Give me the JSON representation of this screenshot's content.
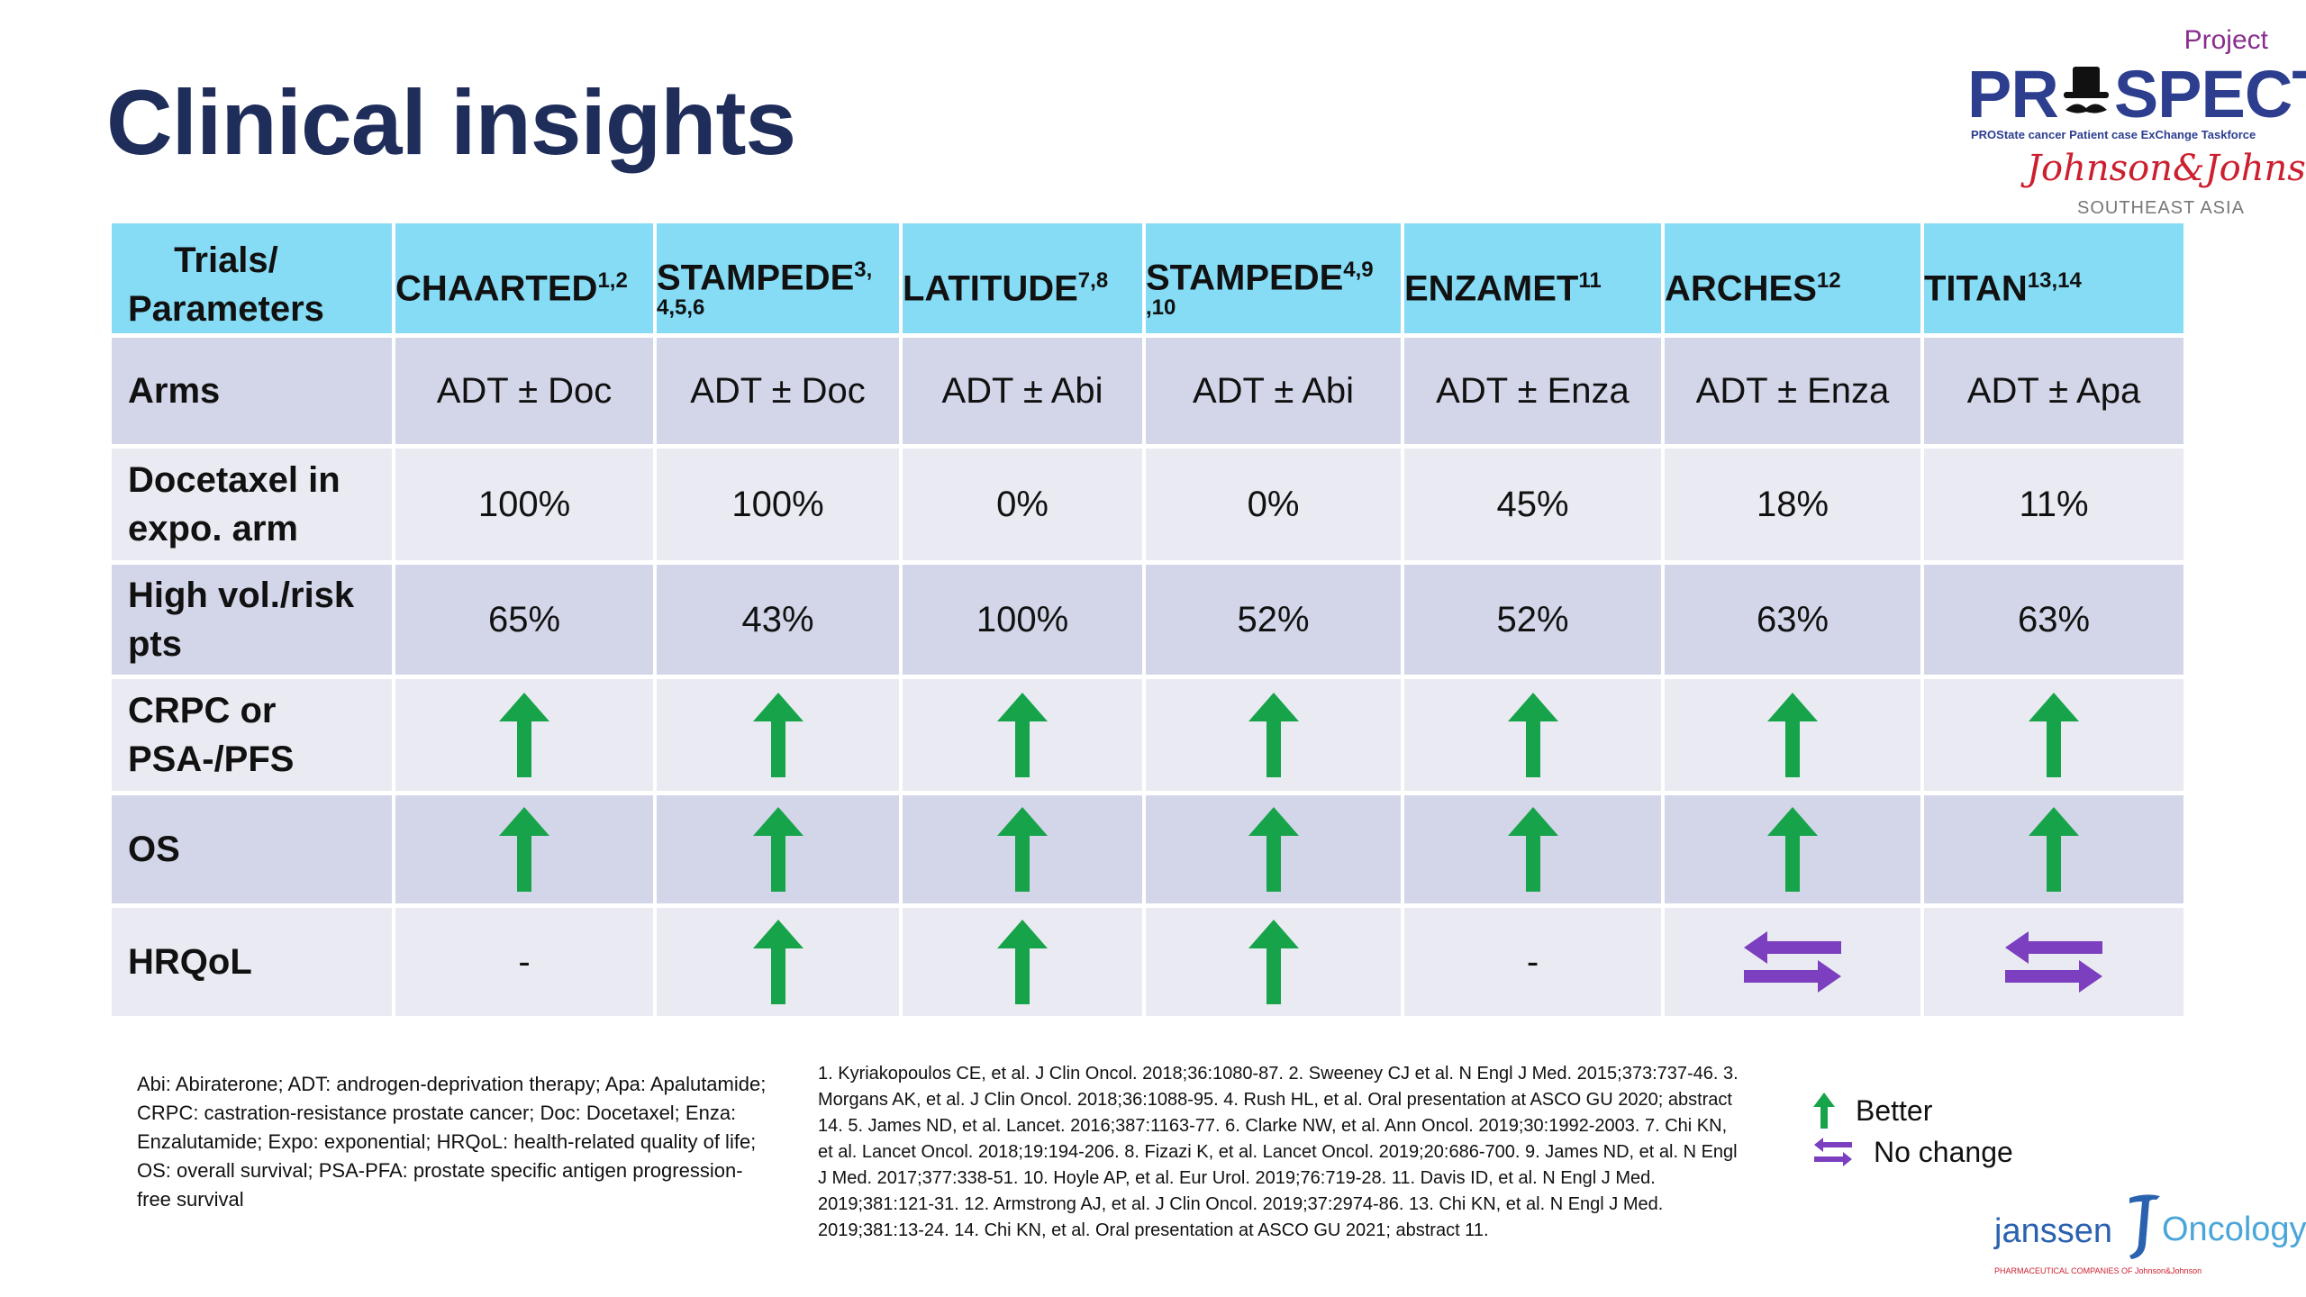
{
  "page": {
    "title": "Clinical insights"
  },
  "logo_prospect": {
    "project": "Project",
    "name_a": "PR",
    "name_b": "SPECT",
    "tagline": "PROState cancer Patient case ExChange Taskforce",
    "sponsor": "Johnson&Johnson",
    "region": "SOUTHEAST ASIA"
  },
  "colors": {
    "header": "#86dcf5",
    "row_dark": "#d3d6e8",
    "row_light": "#eaebf2",
    "better": "#16a34a",
    "no_change": "#7b3fbf",
    "title": "#1f2d5a"
  },
  "table": {
    "corner": "Trials/\nParameters",
    "headers": [
      {
        "name": "CHAARTED",
        "sup": "1,2",
        "sub": ""
      },
      {
        "name": "STAMPEDE",
        "sup": "3,",
        "sub": "4,5,6"
      },
      {
        "name": "LATITUDE",
        "sup": "7,8",
        "sub": ""
      },
      {
        "name": "STAMPEDE",
        "sup": "4,9",
        "sub": ",10"
      },
      {
        "name": "ENZAMET",
        "sup": "11",
        "sub": ""
      },
      {
        "name": "ARCHES",
        "sup": "12",
        "sub": ""
      },
      {
        "name": "TITAN",
        "sup": "13,14",
        "sub": ""
      }
    ],
    "rows": [
      {
        "label": "Arms",
        "values": [
          "ADT ± Doc",
          "ADT ± Doc",
          "ADT ± Abi",
          "ADT ± Abi",
          "ADT ± Enza",
          "ADT ± Enza",
          "ADT ± Apa"
        ]
      },
      {
        "label": "Docetaxel in\nexpo. arm",
        "values": [
          "100%",
          "100%",
          "0%",
          "0%",
          "45%",
          "18%",
          "11%"
        ]
      },
      {
        "label": "High vol./risk\npts",
        "values": [
          "65%",
          "43%",
          "100%",
          "52%",
          "52%",
          "63%",
          "63%"
        ]
      },
      {
        "label": "CRPC or\nPSA-/PFS",
        "icons": [
          "better",
          "better",
          "better",
          "better",
          "better",
          "better",
          "better"
        ]
      },
      {
        "label": "OS",
        "icons": [
          "better",
          "better",
          "better",
          "better",
          "better",
          "better",
          "better"
        ]
      },
      {
        "label": "HRQoL",
        "icons": [
          "dash",
          "better",
          "better",
          "better",
          "dash",
          "no_change",
          "no_change"
        ],
        "dash_text": "-"
      }
    ]
  },
  "abbreviations": "Abi: Abiraterone; ADT: androgen-deprivation therapy; Apa: Apalutamide; CRPC: castration-resistance prostate cancer; Doc: Docetaxel; Enza: Enzalutamide; Expo: exponential; HRQoL: health-related quality of life; OS: overall survival; PSA-PFA: prostate specific antigen progression-free survival",
  "references": "1. Kyriakopoulos CE, et al. J Clin Oncol. 2018;36:1080-87. 2. Sweeney CJ et al. N Engl J Med. 2015;373:737-46. 3. Morgans AK, et al. J Clin Oncol. 2018;36:1088-95. 4. Rush HL, et al. Oral presentation at ASCO GU 2020; abstract 14. 5. James ND, et al. Lancet. 2016;387:1163-77. 6. Clarke NW, et al. Ann Oncol. 2019;30:1992-2003. 7. Chi KN, et al. Lancet Oncol. 2018;19:194-206. 8. Fizazi K, et al. Lancet Oncol. 2019;20:686-700. 9. James ND, et al. N Engl J Med. 2017;377:338-51. 10. Hoyle AP, et al. Eur Urol. 2019;76:719-28. 11. Davis ID, et al. N Engl J Med. 2019;381:121-31. 12. Armstrong AJ, et al. J Clin Oncol. 2019;37:2974-86. 13. Chi KN, et al. N Engl J Med. 2019;381:13-24. 14. Chi KN, et al. Oral presentation at ASCO GU 2021; abstract 11.",
  "legend": {
    "better": "Better",
    "no_change": "No change"
  },
  "logo_janssen": {
    "name": "janssen",
    "division": "Oncology",
    "sub": "PHARMACEUTICAL COMPANIES OF Johnson&Johnson"
  }
}
